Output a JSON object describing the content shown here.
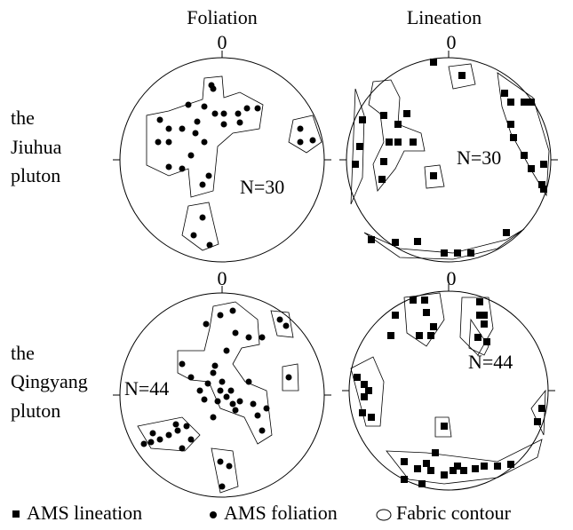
{
  "headers": [
    "Foliation",
    "Lineation"
  ],
  "north_labels": [
    "0",
    "0",
    "0",
    "0"
  ],
  "rows": [
    {
      "label": [
        "the",
        "Jiuhua",
        "pluton"
      ],
      "counts": [
        "N=30",
        "N=30"
      ]
    },
    {
      "label": [
        "the",
        "Qingyang",
        "pluton"
      ],
      "counts": [
        "N=44",
        "N=44"
      ]
    }
  ],
  "legend": [
    "AMS lineation",
    "AMS foliation",
    "Fabric contour"
  ]
}
